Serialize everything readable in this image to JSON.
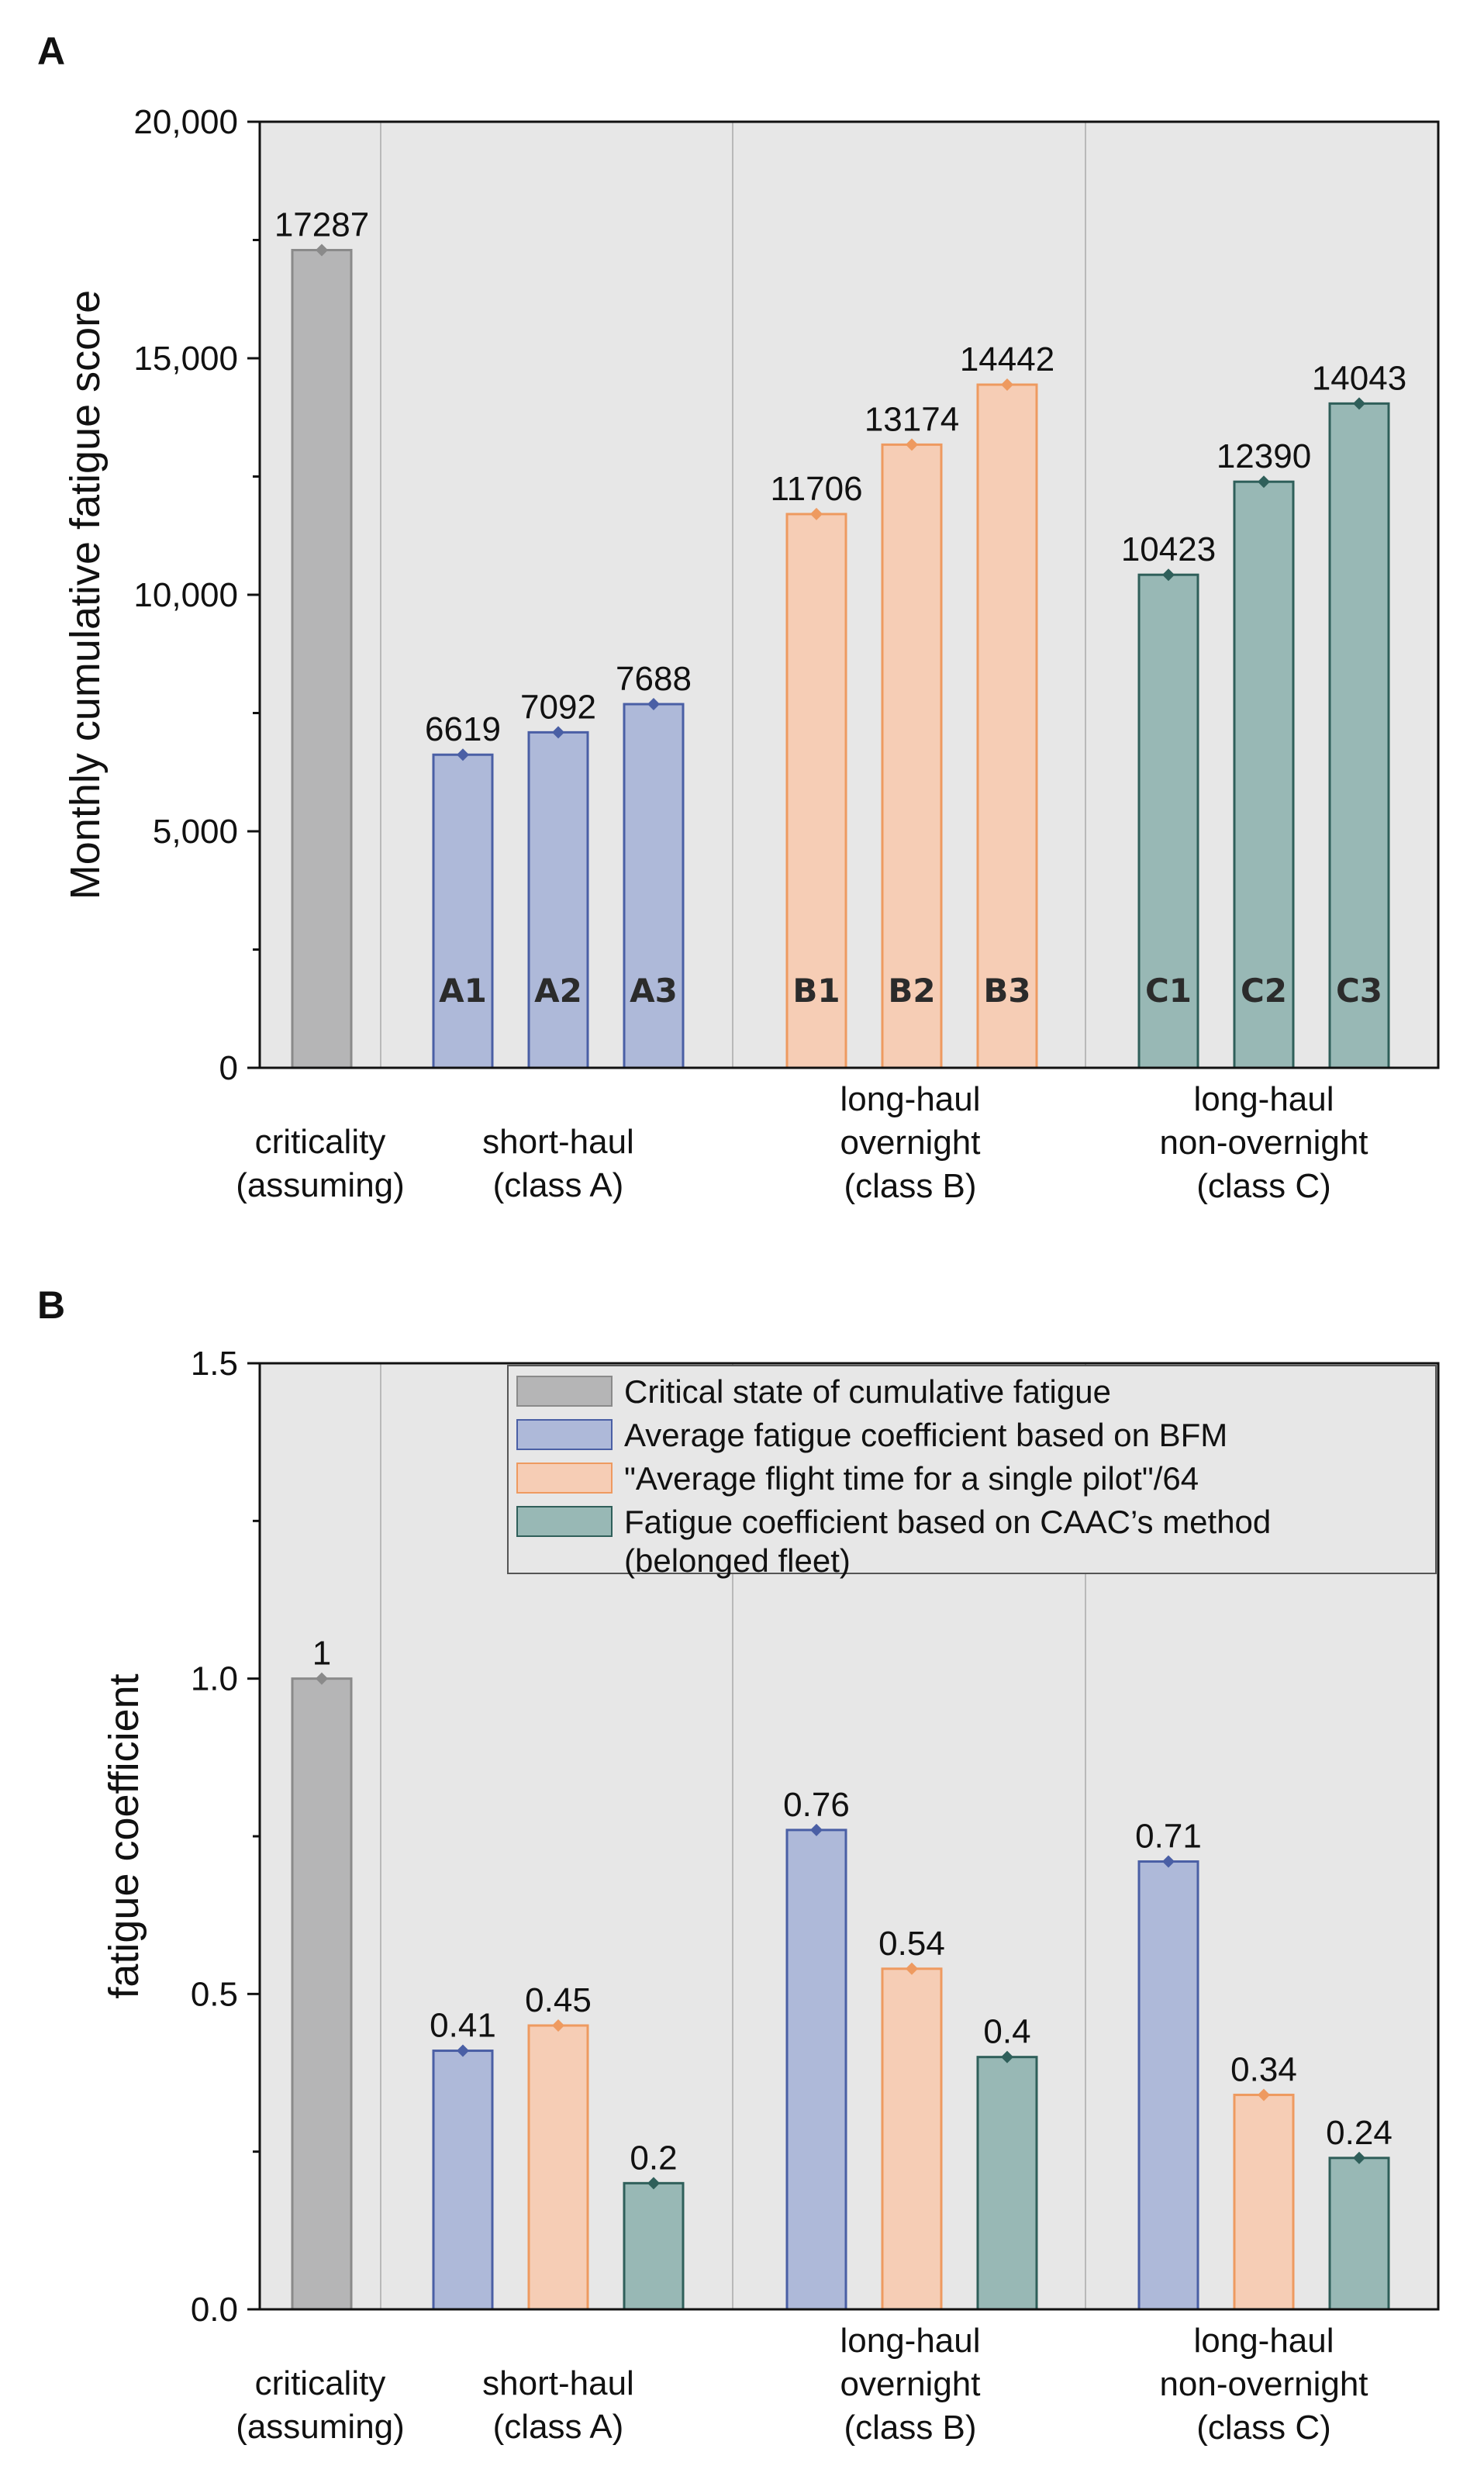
{
  "colors": {
    "plot_bg": "#e7e7e7",
    "divider": "#b9b9b9",
    "criticality": {
      "fill": "#b5b5b6",
      "edge": "#8a8a8a",
      "marker": "#8a8a8a"
    },
    "blue": {
      "fill": "#aeb9d9",
      "edge": "#4a5fa5",
      "marker": "#4a5fa5"
    },
    "orange": {
      "fill": "#f6cdb5",
      "edge": "#ee9a60",
      "marker": "#ee9a60"
    },
    "teal": {
      "fill": "#98b8b5",
      "edge": "#2f5f5a",
      "marker": "#2f5f5a"
    }
  },
  "chart_data": [
    {
      "type": "bar",
      "panel": "A",
      "ylabel": "Monthly cumulative fatigue score",
      "ylim": [
        0,
        20000
      ],
      "yticks": [
        {
          "value": 0,
          "label": "0"
        },
        {
          "value": 5000,
          "label": "5,000"
        },
        {
          "value": 10000,
          "label": "10,000"
        },
        {
          "value": 15000,
          "label": "15,000"
        },
        {
          "value": 20000,
          "label": "20,000"
        }
      ],
      "groups": [
        {
          "lines": [
            "criticality",
            "(assuming)"
          ]
        },
        {
          "lines": [
            "short-haul",
            "(class A)"
          ]
        },
        {
          "lines": [
            "long-haul",
            "overnight",
            "(class B)"
          ]
        },
        {
          "lines": [
            "long-haul",
            "non-overnight",
            "(class C)"
          ]
        }
      ],
      "bars": [
        {
          "group": 0,
          "id": "",
          "value": 17287,
          "label": "17287",
          "color": "criticality"
        },
        {
          "group": 1,
          "id": "A1",
          "value": 6619,
          "label": "6619",
          "color": "blue"
        },
        {
          "group": 1,
          "id": "A2",
          "value": 7092,
          "label": "7092",
          "color": "blue"
        },
        {
          "group": 1,
          "id": "A3",
          "value": 7688,
          "label": "7688",
          "color": "blue"
        },
        {
          "group": 2,
          "id": "B1",
          "value": 11706,
          "label": "11706",
          "color": "orange"
        },
        {
          "group": 2,
          "id": "B2",
          "value": 13174,
          "label": "13174",
          "color": "orange"
        },
        {
          "group": 2,
          "id": "B3",
          "value": 14442,
          "label": "14442",
          "color": "orange"
        },
        {
          "group": 3,
          "id": "C1",
          "value": 10423,
          "label": "10423",
          "color": "teal"
        },
        {
          "group": 3,
          "id": "C2",
          "value": 12390,
          "label": "12390",
          "color": "teal"
        },
        {
          "group": 3,
          "id": "C3",
          "value": 14043,
          "label": "14043",
          "color": "teal"
        }
      ]
    },
    {
      "type": "bar",
      "panel": "B",
      "ylabel": "fatigue coefficient",
      "ylim": [
        0,
        1.5
      ],
      "yticks": [
        {
          "value": 0,
          "label": "0.0"
        },
        {
          "value": 0.5,
          "label": "0.5"
        },
        {
          "value": 1.0,
          "label": "1.0"
        },
        {
          "value": 1.5,
          "label": "1.5"
        }
      ],
      "groups": [
        {
          "lines": [
            "criticality",
            "(assuming)"
          ]
        },
        {
          "lines": [
            "short-haul",
            "(class A)"
          ]
        },
        {
          "lines": [
            "long-haul",
            "overnight",
            "(class B)"
          ]
        },
        {
          "lines": [
            "long-haul",
            "non-overnight",
            "(class C)"
          ]
        }
      ],
      "legend": {
        "position": "top-right",
        "entries": [
          {
            "color": "criticality",
            "lines": [
              "Critical state of cumulative fatigue"
            ]
          },
          {
            "color": "blue",
            "lines": [
              "Average fatigue coefficient based on BFM"
            ]
          },
          {
            "color": "orange",
            "lines": [
              "\"Average flight time for a single pilot\"/64"
            ]
          },
          {
            "color": "teal",
            "lines": [
              "Fatigue coefficient based on CAAC’s method",
              " (belonged fleet)"
            ]
          }
        ]
      },
      "bars": [
        {
          "group": 0,
          "value": 1.0,
          "label": "1",
          "color": "criticality"
        },
        {
          "group": 1,
          "value": 0.41,
          "label": "0.41",
          "color": "blue"
        },
        {
          "group": 1,
          "value": 0.45,
          "label": "0.45",
          "color": "orange"
        },
        {
          "group": 1,
          "value": 0.2,
          "label": "0.2",
          "color": "teal"
        },
        {
          "group": 2,
          "value": 0.76,
          "label": "0.76",
          "color": "blue"
        },
        {
          "group": 2,
          "value": 0.54,
          "label": "0.54",
          "color": "orange"
        },
        {
          "group": 2,
          "value": 0.4,
          "label": "0.4",
          "color": "teal"
        },
        {
          "group": 3,
          "value": 0.71,
          "label": "0.71",
          "color": "blue"
        },
        {
          "group": 3,
          "value": 0.34,
          "label": "0.34",
          "color": "orange"
        },
        {
          "group": 3,
          "value": 0.24,
          "label": "0.24",
          "color": "teal"
        }
      ]
    }
  ]
}
